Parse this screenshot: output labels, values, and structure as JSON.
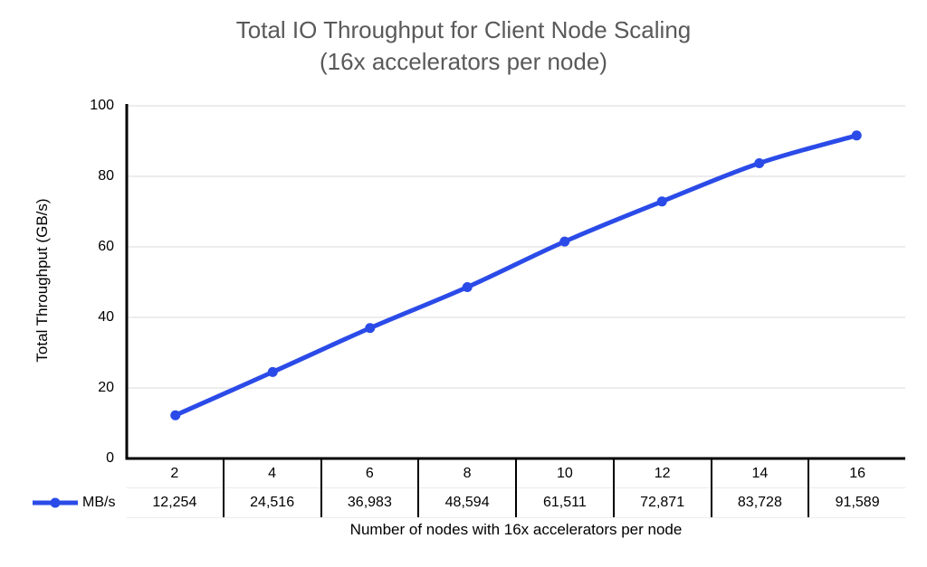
{
  "chart": {
    "title_line1": "Total IO Throughput for Client Node Scaling",
    "title_line2": "(16x accelerators per node)"
  },
  "chart_data": {
    "type": "line",
    "title": "Total IO Throughput for Client Node Scaling (16x accelerators per node)",
    "xlabel": "Number of nodes with 16x accelerators per node",
    "ylabel": "Total Throughput (GB/s)",
    "categories": [
      "2",
      "4",
      "6",
      "8",
      "10",
      "12",
      "14",
      "16"
    ],
    "series": [
      {
        "name": "MB/s",
        "values_mb_s": [
          12254,
          24516,
          36983,
          48594,
          61511,
          72871,
          83728,
          91589
        ],
        "values_gb_s": [
          12.254,
          24.516,
          36.983,
          48.594,
          61.511,
          72.871,
          83.728,
          91.589
        ],
        "table_labels": [
          "12,254",
          "24,516",
          "36,983",
          "48,594",
          "61,511",
          "72,871",
          "83,728",
          "91,589"
        ]
      }
    ],
    "ylim": [
      0,
      100
    ],
    "yticks": [
      0,
      20,
      40,
      60,
      80,
      100
    ],
    "grid": true,
    "legend_position": "table-left",
    "smooth_line": true,
    "colors": {
      "line": "#2b4be8",
      "marker": "#2b4be8",
      "grid": "#d9d9d9",
      "axis": "#000000",
      "title": "#595959",
      "text": "#000000"
    }
  }
}
